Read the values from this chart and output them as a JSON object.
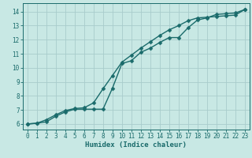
{
  "title": "",
  "xlabel": "Humidex (Indice chaleur)",
  "ylabel": "",
  "bg_color": "#c8e8e4",
  "grid_color": "#a8cccc",
  "line_color": "#1a6b6b",
  "xlim": [
    -0.5,
    23.5
  ],
  "ylim": [
    5.6,
    14.6
  ],
  "xticks": [
    0,
    1,
    2,
    3,
    4,
    5,
    6,
    7,
    8,
    9,
    10,
    11,
    12,
    13,
    14,
    15,
    16,
    17,
    18,
    19,
    20,
    21,
    22,
    23
  ],
  "yticks": [
    6,
    7,
    8,
    9,
    10,
    11,
    12,
    13,
    14
  ],
  "line1_x": [
    0,
    1,
    2,
    3,
    4,
    5,
    6,
    7,
    8,
    9,
    10,
    11,
    12,
    13,
    14,
    15,
    16,
    17,
    18,
    19,
    20,
    21,
    22,
    23
  ],
  "line1_y": [
    6.0,
    6.05,
    6.15,
    6.55,
    6.85,
    7.05,
    7.05,
    7.05,
    7.05,
    8.55,
    10.3,
    10.5,
    11.1,
    11.4,
    11.8,
    12.15,
    12.15,
    12.85,
    13.4,
    13.55,
    13.8,
    13.85,
    13.9,
    14.15
  ],
  "line2_x": [
    0,
    1,
    2,
    3,
    4,
    5,
    6,
    7,
    8,
    9,
    10,
    11,
    12,
    13,
    14,
    15,
    16,
    17,
    18,
    19,
    20,
    21,
    22,
    23
  ],
  "line2_y": [
    6.0,
    6.05,
    6.3,
    6.65,
    6.95,
    7.1,
    7.15,
    7.5,
    8.5,
    9.45,
    10.4,
    10.9,
    11.4,
    11.85,
    12.3,
    12.7,
    13.0,
    13.35,
    13.55,
    13.6,
    13.65,
    13.7,
    13.75,
    14.15
  ],
  "marker": "D",
  "markersize": 2.5,
  "linewidth": 1.0,
  "xlabel_fontsize": 6.5,
  "tick_fontsize": 5.5
}
